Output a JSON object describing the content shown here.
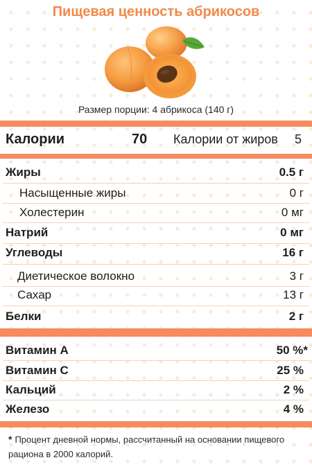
{
  "title": "Пищевая ценность абрикосов",
  "image": {
    "icon": "apricots-image"
  },
  "serving": "Размер порции: 4 абрикоса (140 г)",
  "calories": {
    "label": "Калории",
    "value": "70",
    "fat_label": "Калории от жиров",
    "fat_value": "5"
  },
  "nutrients": [
    {
      "name": "Жиры",
      "value": "0.5 г"
    },
    {
      "name": "Насыщенные жиры",
      "value": "0 г"
    },
    {
      "name": "Холестерин",
      "value": "0 мг"
    },
    {
      "name": "Натрий",
      "value": "0 мг"
    },
    {
      "name": "Углеводы",
      "value": "16 г"
    },
    {
      "name": "Диетическое волокно",
      "value": "3 г"
    },
    {
      "name": "Сахар",
      "value": "13 г"
    },
    {
      "name": "Белки",
      "value": "2 г"
    }
  ],
  "vitamins": [
    {
      "name": "Витамин А",
      "value": "50 %*"
    },
    {
      "name": "Витамин С",
      "value": "25 %"
    },
    {
      "name": "Кальций",
      "value": "2 %"
    },
    {
      "name": "Железо",
      "value": "4 %"
    }
  ],
  "footnote": {
    "star": "*",
    "text": "Процент дневной нормы, рассчитанный на основании пищевого рациона в 2000 калорий."
  },
  "colors": {
    "accent": "#f58b5e",
    "title": "#f08a4b"
  }
}
